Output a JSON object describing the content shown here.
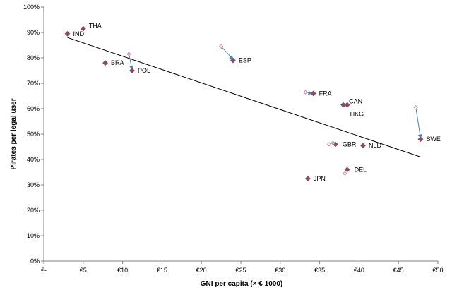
{
  "chart_data": {
    "type": "scatter",
    "title": "",
    "xlabel": "GNI per capita (× € 1000)",
    "ylabel": "Pirates per legal user",
    "xlim": [
      0,
      50
    ],
    "ylim": [
      0,
      100
    ],
    "grid": false,
    "x_ticks": [
      {
        "value": 0,
        "label": "€-"
      },
      {
        "value": 5,
        "label": "€5"
      },
      {
        "value": 10,
        "label": "€10"
      },
      {
        "value": 15,
        "label": "€15"
      },
      {
        "value": 20,
        "label": "€20"
      },
      {
        "value": 25,
        "label": "€25"
      },
      {
        "value": 30,
        "label": "€30"
      },
      {
        "value": 35,
        "label": "€35"
      },
      {
        "value": 40,
        "label": "€40"
      },
      {
        "value": 45,
        "label": "€45"
      },
      {
        "value": 50,
        "label": "€50"
      }
    ],
    "y_ticks": [
      {
        "value": 0,
        "label": "0%"
      },
      {
        "value": 10,
        "label": "10%"
      },
      {
        "value": 20,
        "label": "20%"
      },
      {
        "value": 30,
        "label": "30%"
      },
      {
        "value": 40,
        "label": "40%"
      },
      {
        "value": 50,
        "label": "50%"
      },
      {
        "value": 60,
        "label": "60%"
      },
      {
        "value": 70,
        "label": "70%"
      },
      {
        "value": 80,
        "label": "80%"
      },
      {
        "value": 90,
        "label": "90%"
      },
      {
        "value": 100,
        "label": "100%"
      }
    ],
    "series": [
      {
        "marker": "filled-diamond",
        "color": "#8B4A62",
        "points": [
          {
            "label": "IND",
            "x": 3.0,
            "y": 89.5
          },
          {
            "label": "THA",
            "x": 5.0,
            "y": 91.5
          },
          {
            "label": "BRA",
            "x": 7.8,
            "y": 78.0
          },
          {
            "label": "POL",
            "x": 11.2,
            "y": 75.0
          },
          {
            "label": "ESP",
            "x": 24.0,
            "y": 79.0
          },
          {
            "label": "FRA",
            "x": 34.2,
            "y": 66.0
          },
          {
            "label": "CAN",
            "x": 38.0,
            "y": 61.5
          },
          {
            "label": "HKG",
            "x": 38.5,
            "y": 61.5
          },
          {
            "label": "GBR",
            "x": 37.0,
            "y": 46.0
          },
          {
            "label": "NLD",
            "x": 40.5,
            "y": 45.5
          },
          {
            "label": "DEU",
            "x": 38.5,
            "y": 36.0
          },
          {
            "label": "JPN",
            "x": 33.5,
            "y": 32.5
          },
          {
            "label": "SWE",
            "x": 47.8,
            "y": 48.0
          }
        ]
      },
      {
        "marker": "hollow-diamond",
        "color": "#D08CA0",
        "points": [
          {
            "x": 10.8,
            "y": 81.5
          },
          {
            "x": 22.5,
            "y": 84.5
          },
          {
            "x": 33.2,
            "y": 66.5
          },
          {
            "x": 36.2,
            "y": 46.0
          },
          {
            "x": 36.7,
            "y": 46.5
          },
          {
            "x": 38.2,
            "y": 34.5
          },
          {
            "x": 47.2,
            "y": 60.5
          }
        ]
      }
    ],
    "arrows": [
      {
        "from": [
          10.8,
          81.5
        ],
        "to": [
          11.2,
          75.5
        ]
      },
      {
        "from": [
          22.5,
          84.5
        ],
        "to": [
          24.0,
          79.5
        ]
      },
      {
        "from": [
          33.2,
          66.5
        ],
        "to": [
          34.0,
          66.0
        ]
      },
      {
        "from": [
          47.2,
          60.5
        ],
        "to": [
          47.8,
          48.5
        ]
      }
    ],
    "trendline": {
      "from": [
        3.0,
        88.0
      ],
      "to": [
        47.8,
        41.0
      ]
    },
    "colors": {
      "arrow": "#4F81BD",
      "axis": "#808080",
      "trend": "#000000"
    }
  }
}
